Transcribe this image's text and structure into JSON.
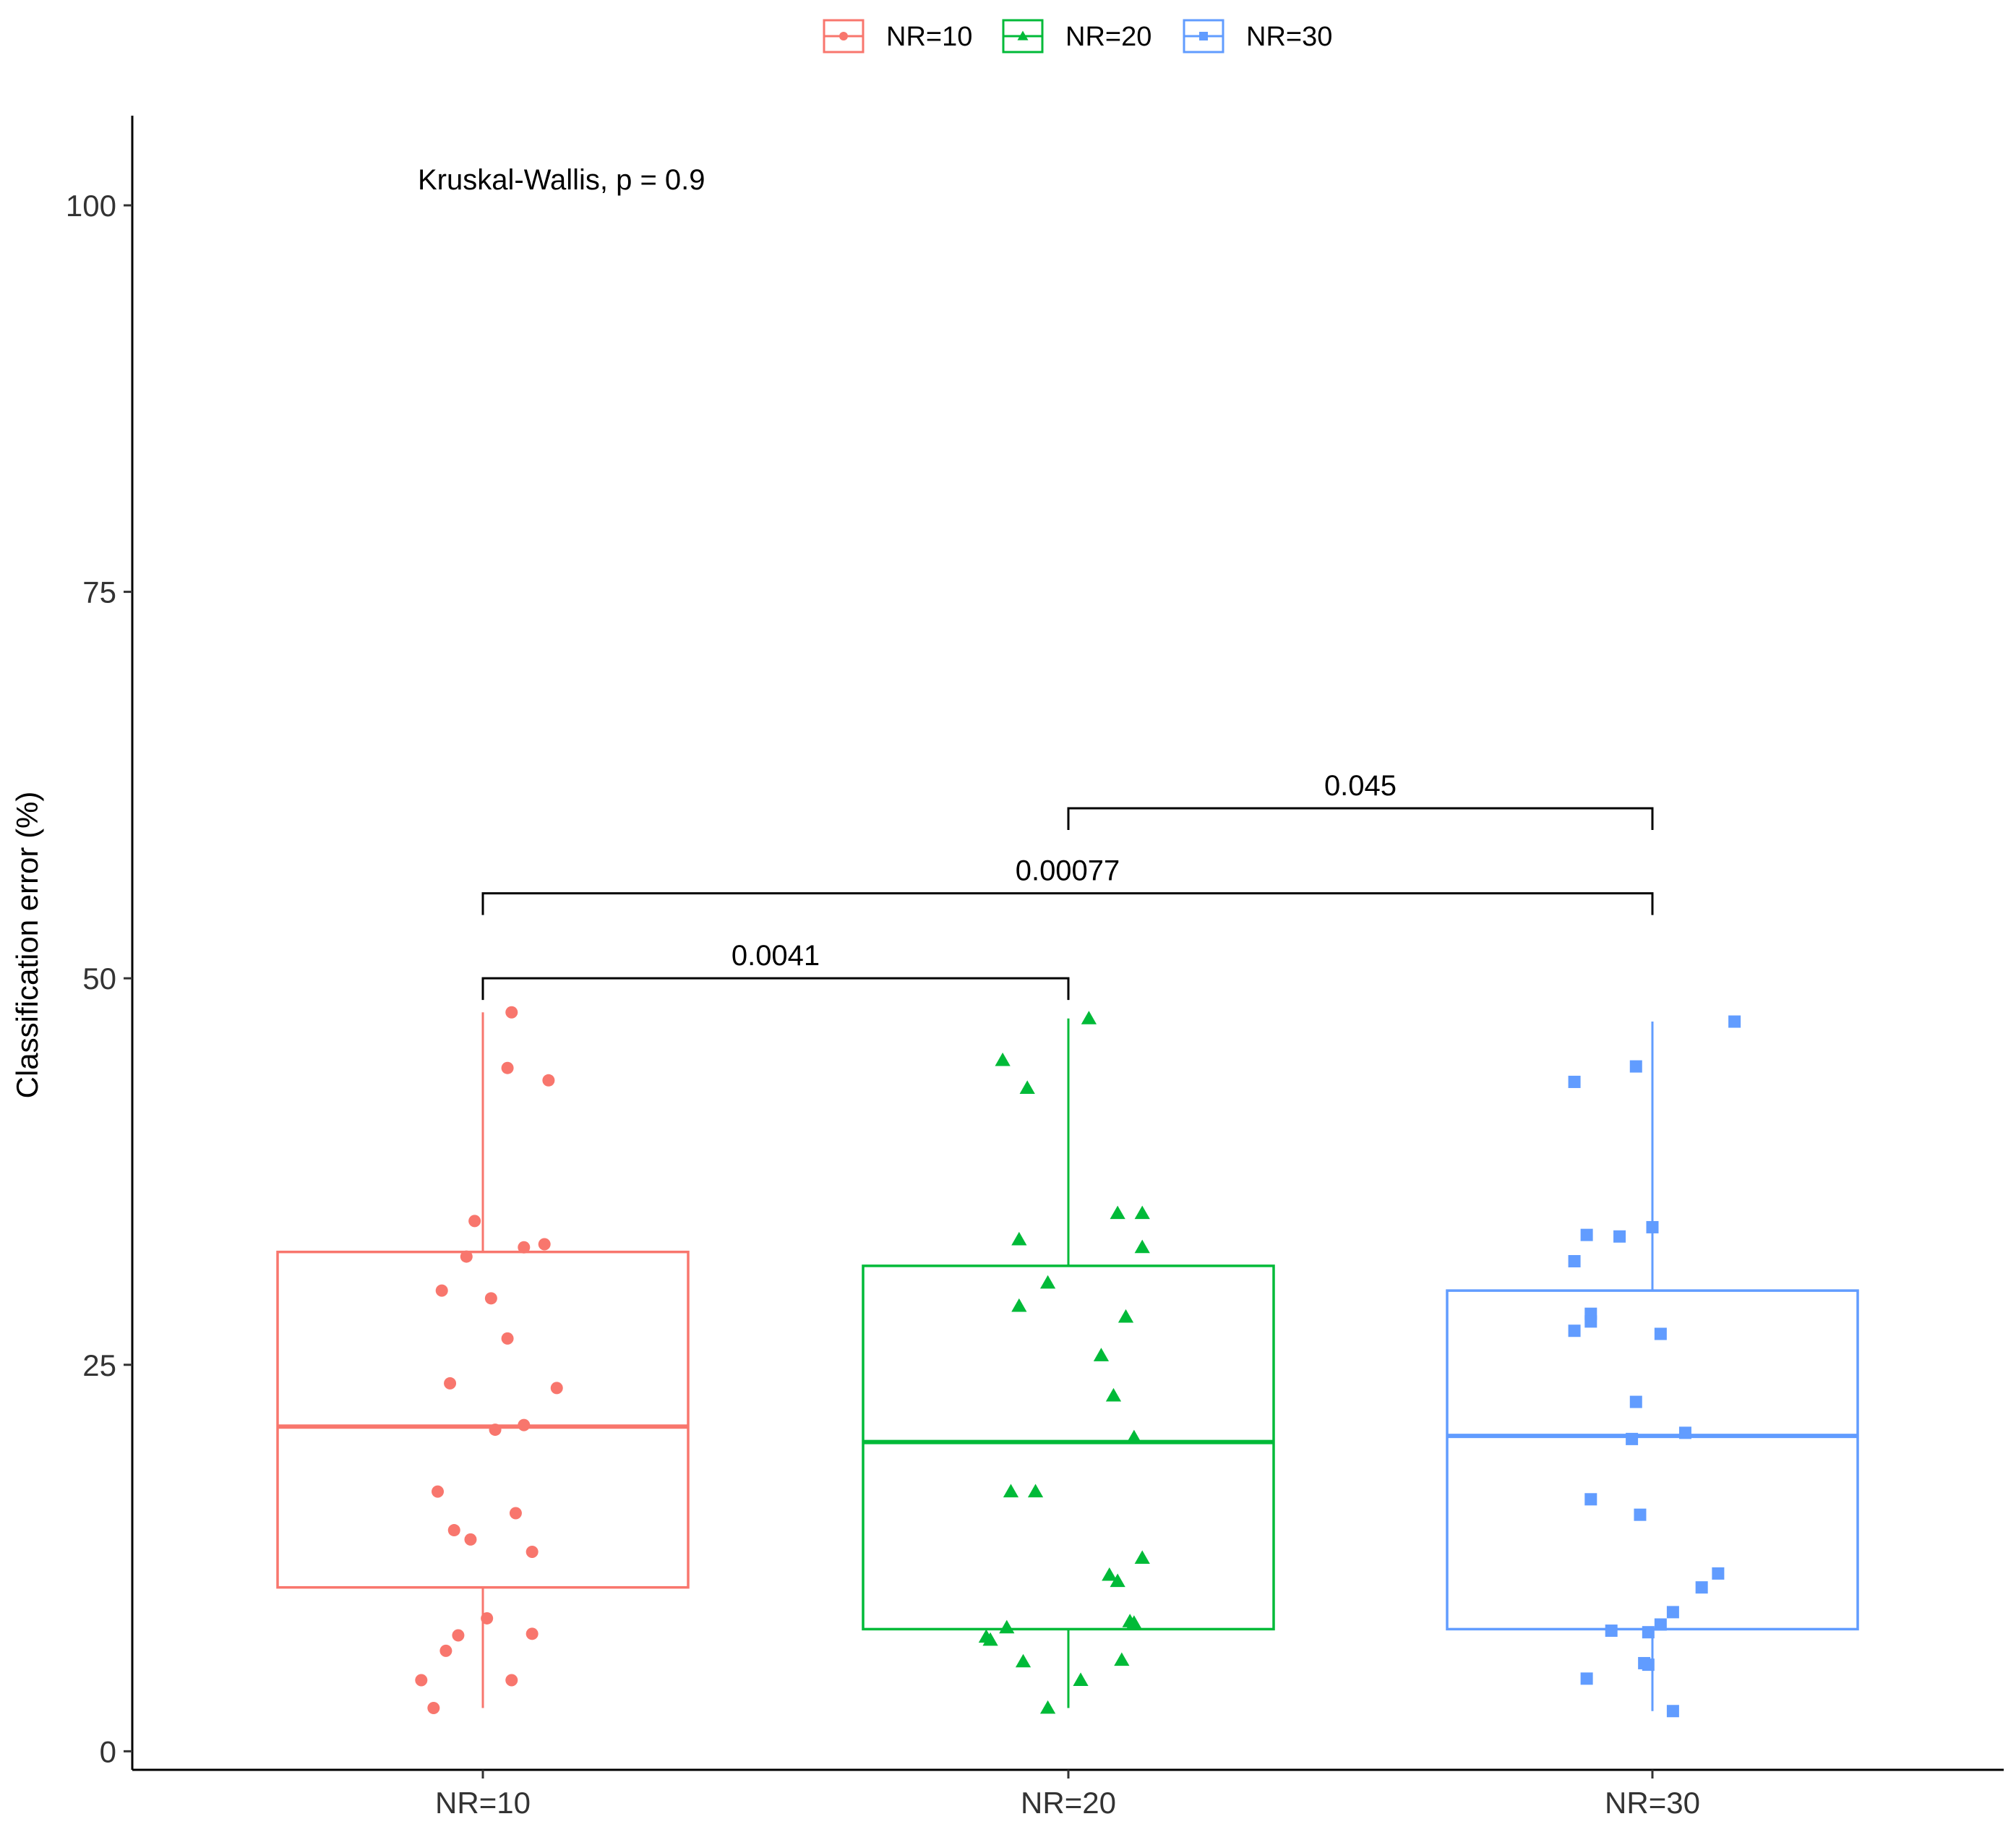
{
  "chart_data": {
    "type": "boxplot",
    "title": "",
    "xlabel": "",
    "ylabel": "Classification error (%)",
    "ylim": [
      -1.2,
      105.8
    ],
    "y_ticks": [
      0,
      25,
      50,
      75,
      100
    ],
    "y_tick_labels": [
      "0",
      "25",
      "50",
      "75",
      "100"
    ],
    "categories": [
      "NR=10",
      "NR=20",
      "NR=30"
    ],
    "legend": {
      "position": "top",
      "entries": [
        {
          "label": "NR=10",
          "color": "#F8766D",
          "shape": "circle"
        },
        {
          "label": "NR=20",
          "color": "#00BA38",
          "shape": "triangle"
        },
        {
          "label": "NR=30",
          "color": "#619CFF",
          "shape": "square"
        }
      ]
    },
    "annotation": "Kruskal-Wallis, p = 0.9",
    "series": [
      {
        "name": "NR=10",
        "color": "#F8766D",
        "shape": "circle",
        "box": {
          "whisker_low": 2.8,
          "q1": 10.6,
          "median": 21.0,
          "q3": 32.3,
          "whisker_high": 47.8
        },
        "points": [
          {
            "jitter": 0.07,
            "value": 47.8
          },
          {
            "jitter": 0.06,
            "value": 44.2
          },
          {
            "jitter": 0.16,
            "value": 43.4
          },
          {
            "jitter": -0.02,
            "value": 34.3
          },
          {
            "jitter": 0.15,
            "value": 32.8
          },
          {
            "jitter": 0.1,
            "value": 32.6
          },
          {
            "jitter": -0.04,
            "value": 32.0
          },
          {
            "jitter": -0.1,
            "value": 29.8
          },
          {
            "jitter": 0.02,
            "value": 29.3
          },
          {
            "jitter": 0.06,
            "value": 26.7
          },
          {
            "jitter": -0.08,
            "value": 23.8
          },
          {
            "jitter": 0.18,
            "value": 23.5
          },
          {
            "jitter": 0.1,
            "value": 21.1
          },
          {
            "jitter": 0.03,
            "value": 20.8
          },
          {
            "jitter": -0.11,
            "value": 16.8
          },
          {
            "jitter": 0.08,
            "value": 15.4
          },
          {
            "jitter": -0.07,
            "value": 14.3
          },
          {
            "jitter": -0.03,
            "value": 13.7
          },
          {
            "jitter": 0.12,
            "value": 12.9
          },
          {
            "jitter": 0.01,
            "value": 8.6
          },
          {
            "jitter": 0.12,
            "value": 7.6
          },
          {
            "jitter": -0.06,
            "value": 7.5
          },
          {
            "jitter": -0.09,
            "value": 6.5
          },
          {
            "jitter": -0.15,
            "value": 4.6
          },
          {
            "jitter": 0.07,
            "value": 4.6
          },
          {
            "jitter": -0.12,
            "value": 2.8
          }
        ]
      },
      {
        "name": "NR=20",
        "color": "#00BA38",
        "shape": "triangle",
        "box": {
          "whisker_low": 2.8,
          "q1": 7.9,
          "median": 20.0,
          "q3": 31.4,
          "whisker_high": 47.4
        },
        "points": [
          {
            "jitter": 0.05,
            "value": 47.4
          },
          {
            "jitter": -0.16,
            "value": 44.7
          },
          {
            "jitter": -0.1,
            "value": 42.9
          },
          {
            "jitter": 0.12,
            "value": 34.8
          },
          {
            "jitter": 0.18,
            "value": 34.8
          },
          {
            "jitter": 0.18,
            "value": 32.6
          },
          {
            "jitter": -0.12,
            "value": 33.1
          },
          {
            "jitter": -0.05,
            "value": 30.3
          },
          {
            "jitter": -0.12,
            "value": 28.8
          },
          {
            "jitter": 0.14,
            "value": 28.1
          },
          {
            "jitter": 0.08,
            "value": 25.6
          },
          {
            "jitter": 0.11,
            "value": 23.0
          },
          {
            "jitter": 0.16,
            "value": 20.3
          },
          {
            "jitter": -0.14,
            "value": 16.8
          },
          {
            "jitter": -0.08,
            "value": 16.8
          },
          {
            "jitter": 0.18,
            "value": 12.5
          },
          {
            "jitter": 0.1,
            "value": 11.4
          },
          {
            "jitter": 0.12,
            "value": 11.0
          },
          {
            "jitter": 0.15,
            "value": 8.4
          },
          {
            "jitter": 0.16,
            "value": 8.3
          },
          {
            "jitter": -0.15,
            "value": 8.0
          },
          {
            "jitter": -0.2,
            "value": 7.4
          },
          {
            "jitter": -0.19,
            "value": 7.2
          },
          {
            "jitter": -0.11,
            "value": 5.8
          },
          {
            "jitter": 0.13,
            "value": 5.9
          },
          {
            "jitter": 0.03,
            "value": 4.6
          },
          {
            "jitter": -0.05,
            "value": 2.8
          }
        ]
      },
      {
        "name": "NR=30",
        "color": "#619CFF",
        "shape": "square",
        "box": {
          "whisker_low": 2.6,
          "q1": 7.9,
          "median": 20.4,
          "q3": 29.8,
          "whisker_high": 47.2
        },
        "points": [
          {
            "jitter": 0.2,
            "value": 47.2
          },
          {
            "jitter": -0.04,
            "value": 44.3
          },
          {
            "jitter": -0.19,
            "value": 43.3
          },
          {
            "jitter": 0.0,
            "value": 33.9
          },
          {
            "jitter": -0.16,
            "value": 33.4
          },
          {
            "jitter": -0.08,
            "value": 33.3
          },
          {
            "jitter": -0.19,
            "value": 31.7
          },
          {
            "jitter": -0.15,
            "value": 28.3
          },
          {
            "jitter": -0.15,
            "value": 27.8
          },
          {
            "jitter": -0.19,
            "value": 27.2
          },
          {
            "jitter": 0.02,
            "value": 27.0
          },
          {
            "jitter": -0.04,
            "value": 22.6
          },
          {
            "jitter": 0.08,
            "value": 20.6
          },
          {
            "jitter": -0.05,
            "value": 20.2
          },
          {
            "jitter": -0.15,
            "value": 16.3
          },
          {
            "jitter": -0.03,
            "value": 15.3
          },
          {
            "jitter": 0.16,
            "value": 11.5
          },
          {
            "jitter": 0.12,
            "value": 10.6
          },
          {
            "jitter": 0.05,
            "value": 9.0
          },
          {
            "jitter": 0.02,
            "value": 8.2
          },
          {
            "jitter": -0.01,
            "value": 7.7
          },
          {
            "jitter": -0.1,
            "value": 7.8
          },
          {
            "jitter": -0.02,
            "value": 5.7
          },
          {
            "jitter": -0.01,
            "value": 5.6
          },
          {
            "jitter": -0.16,
            "value": 4.7
          },
          {
            "jitter": 0.05,
            "value": 2.6
          }
        ]
      }
    ],
    "comparisons": [
      {
        "group1": "NR=10",
        "group2": "NR=20",
        "p_label": "0.0041",
        "y": 50.0
      },
      {
        "group1": "NR=10",
        "group2": "NR=30",
        "p_label": "0.00077",
        "y": 55.5
      },
      {
        "group1": "NR=20",
        "group2": "NR=30",
        "p_label": "0.045",
        "y": 61.0
      }
    ]
  }
}
